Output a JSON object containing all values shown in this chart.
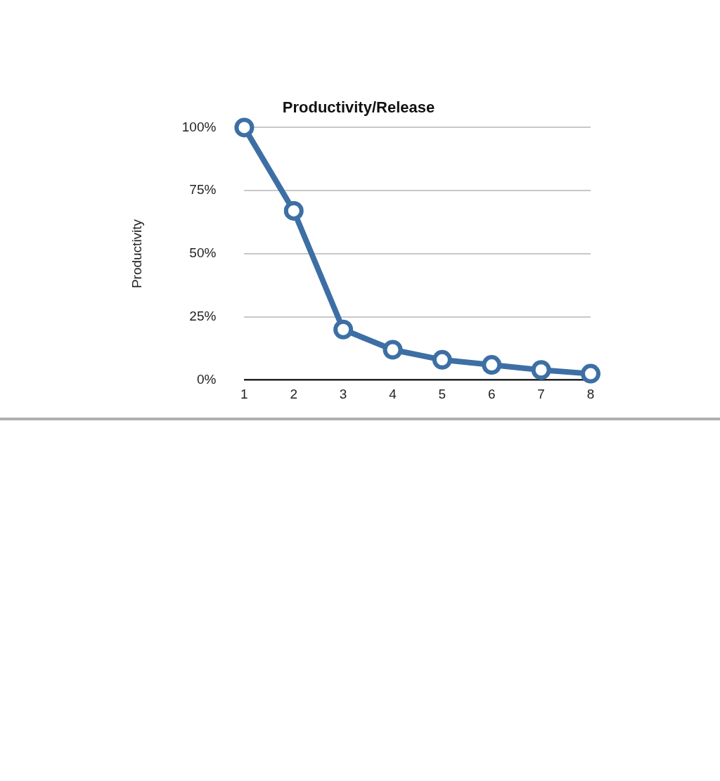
{
  "chart_data": {
    "type": "line",
    "title": "Productivity/Release",
    "ylabel": "Productivity",
    "categories": [
      "1",
      "2",
      "3",
      "4",
      "5",
      "6",
      "7",
      "8"
    ],
    "series": [
      {
        "color": "#3d6fa5",
        "values": [
          100,
          67,
          20,
          12,
          8,
          6,
          4,
          2.5
        ]
      }
    ],
    "ylim": [
      0,
      100
    ],
    "yticks": [
      {
        "value": 0,
        "label": "0%"
      },
      {
        "value": 25,
        "label": "25%"
      },
      {
        "value": 50,
        "label": "50%"
      },
      {
        "value": 75,
        "label": "75%"
      },
      {
        "value": 100,
        "label": "100%"
      }
    ],
    "grid": "y",
    "legend": false,
    "marker": "circle",
    "line_style": "solid"
  }
}
